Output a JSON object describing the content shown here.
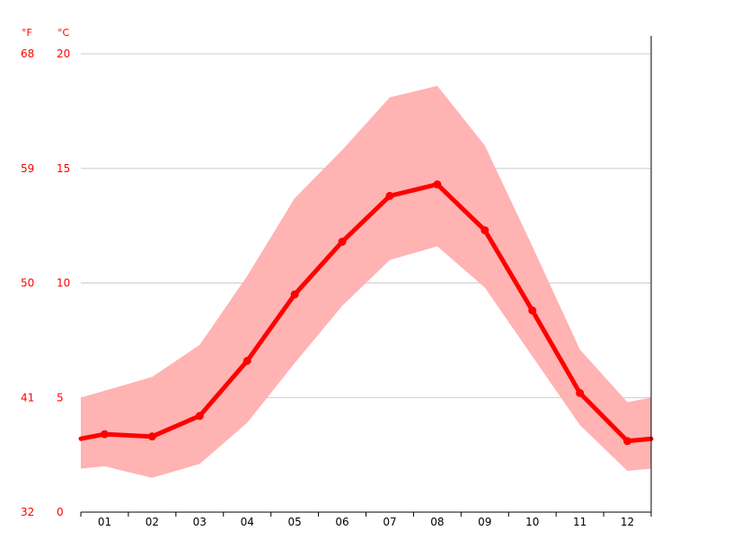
{
  "chart_data": {
    "type": "line",
    "categories": [
      "01",
      "02",
      "03",
      "04",
      "05",
      "06",
      "07",
      "08",
      "09",
      "10",
      "11",
      "12"
    ],
    "series": [
      {
        "values": [
          3.4,
          3.3,
          4.2,
          6.6,
          9.5,
          11.8,
          13.8,
          14.3,
          12.3,
          8.8,
          5.2,
          3.1
        ]
      }
    ],
    "band": {
      "lower": [
        2.0,
        1.5,
        2.1,
        3.9,
        6.5,
        9.0,
        11.0,
        11.6,
        9.8,
        6.8,
        3.8,
        1.8
      ],
      "upper": [
        5.3,
        5.9,
        7.3,
        10.3,
        13.7,
        15.8,
        18.1,
        18.6,
        16.0,
        11.6,
        7.1,
        4.8
      ],
      "edge_left": {
        "lower": 1.9,
        "upper": 5.0,
        "value": 3.2
      },
      "edge_right": {
        "lower": 1.9,
        "upper": 5.0,
        "value": 3.2
      }
    },
    "y_left_unit": "°F",
    "y_right_unit": "°C",
    "y_ticks_c": [
      "0",
      "5",
      "10",
      "15",
      "20"
    ],
    "y_ticks_f": [
      "32",
      "41",
      "50",
      "59",
      "68"
    ],
    "ylim": [
      0,
      20
    ],
    "grid": true,
    "colors": {
      "line": "#ff0000",
      "band": "#ffb3b3",
      "tick_text": "#ff0000",
      "grid": "#cccccc"
    }
  }
}
